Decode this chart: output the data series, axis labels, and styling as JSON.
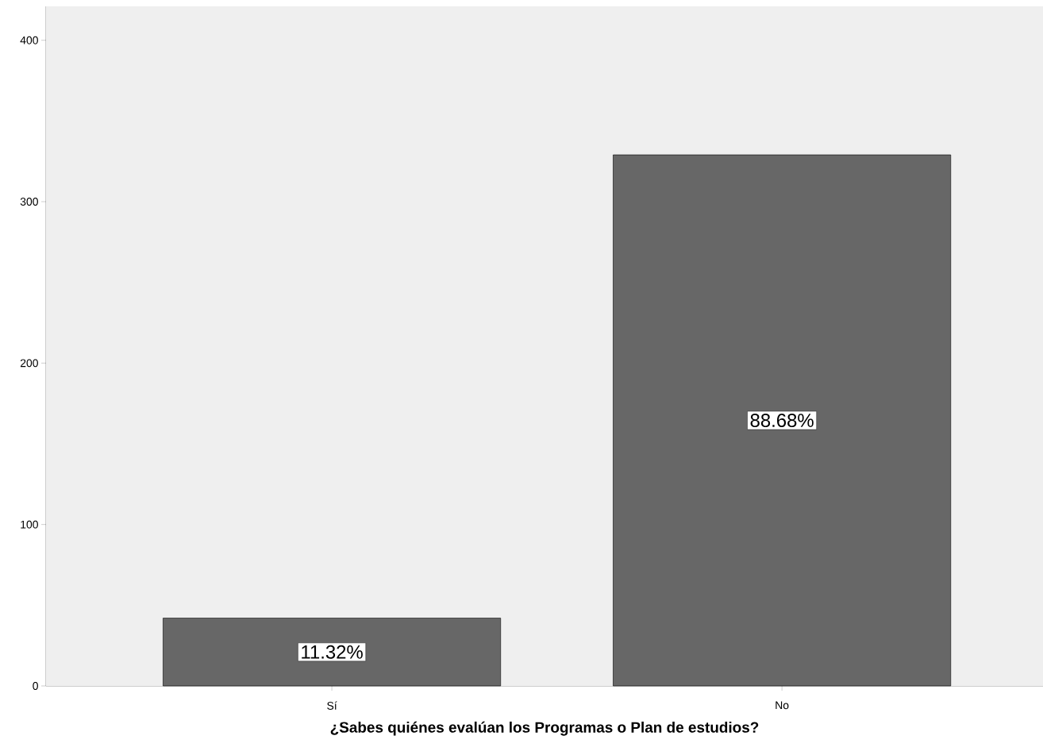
{
  "chart_data": {
    "type": "bar",
    "xlabel": "¿Sabes quiénes evalúan los Programas o Plan de estudios?",
    "categories": [
      "Sí",
      "No"
    ],
    "values": [
      42,
      329
    ],
    "annotations": [
      "11.32%",
      "88.68%"
    ],
    "color": "#676767",
    "ylim": [
      0,
      421
    ],
    "yticks": [
      0,
      100,
      200,
      300,
      400
    ],
    "grid": false
  }
}
